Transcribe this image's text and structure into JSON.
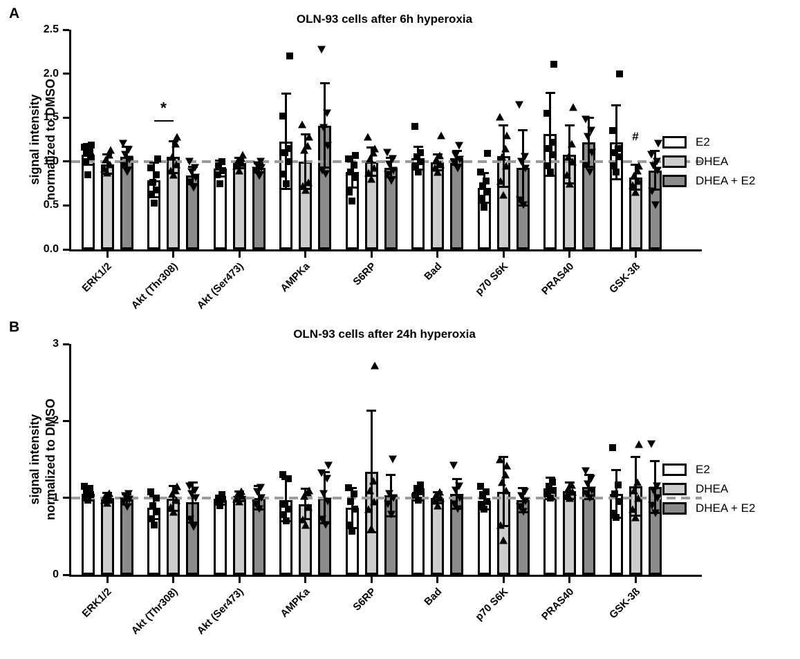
{
  "figure": {
    "background_color": "#ffffff",
    "bar_border_color": "#000000",
    "reference_line_color": "#9b9b9b",
    "series": [
      {
        "name": "E2",
        "marker": "square",
        "fill": "#ffffff"
      },
      {
        "name": "DHEA",
        "marker": "triangle-up",
        "fill": "#cdcdcd"
      },
      {
        "name": "DHEA + E2",
        "marker": "triangle-down",
        "fill": "#8b8b8b"
      }
    ]
  },
  "chart_data": [
    {
      "type": "bar",
      "panel_label": "A",
      "title": "OLN-93 cells after 6h hyperoxia",
      "ylabel_line1": "signal intensity",
      "ylabel_line2": "normalized to DMSO",
      "ylim": [
        0,
        2.5
      ],
      "ytick_labels": [
        "2.5",
        "2.0",
        "1.5",
        "1.0",
        "0.5",
        "0.0"
      ],
      "reference_line": 1.0,
      "grid": false,
      "legend_position": "right",
      "categories": [
        "ERK1/2",
        "Akt (Thr308)",
        "Akt (Ser473)",
        "AMPKa",
        "S6RP",
        "Bad",
        "p70 S6K",
        "PRAS40",
        "GSK-3ß"
      ],
      "series": [
        {
          "name": "E2",
          "means": [
            1.08,
            0.79,
            0.92,
            1.23,
            0.88,
            1.04,
            0.7,
            1.31,
            1.22
          ],
          "sds": [
            0.12,
            0.2,
            0.09,
            0.54,
            0.18,
            0.13,
            0.17,
            0.47,
            0.42
          ],
          "points": [
            [
              0.85,
              1.0,
              1.05,
              1.1,
              1.13,
              1.16,
              1.19
            ],
            [
              0.53,
              0.63,
              0.68,
              0.76,
              0.85,
              0.93,
              1.03
            ],
            [
              0.75,
              0.85,
              0.9,
              0.95,
              1.0
            ],
            [
              0.75,
              0.86,
              1.0,
              1.1,
              1.15,
              1.52,
              2.2
            ],
            [
              0.55,
              0.65,
              0.82,
              0.88,
              0.96,
              1.03,
              1.07
            ],
            [
              0.88,
              0.95,
              1.0,
              1.05,
              1.1,
              1.4
            ],
            [
              0.48,
              0.58,
              0.65,
              0.72,
              0.78,
              0.88,
              1.09
            ],
            [
              0.88,
              0.95,
              1.08,
              1.15,
              1.22,
              1.55,
              2.11
            ],
            [
              0.88,
              0.95,
              1.05,
              1.1,
              1.15,
              1.35,
              2.0
            ]
          ]
        },
        {
          "name": "DHEA",
          "means": [
            0.97,
            1.05,
            0.98,
            1.0,
            1.0,
            0.99,
            1.06,
            1.08,
            0.82
          ],
          "sds": [
            0.11,
            0.18,
            0.06,
            0.31,
            0.16,
            0.09,
            0.35,
            0.33,
            0.14
          ],
          "points": [
            [
              0.87,
              0.92,
              0.97,
              1.02,
              1.08,
              1.13
            ],
            [
              0.85,
              0.9,
              0.97,
              1.05,
              1.2,
              1.28
            ],
            [
              0.9,
              0.95,
              0.98,
              1.01,
              1.04,
              1.08
            ],
            [
              0.68,
              0.72,
              0.76,
              1.13,
              1.18,
              1.28,
              1.42
            ],
            [
              0.8,
              0.87,
              0.93,
              1.03,
              1.1,
              1.15,
              1.28
            ],
            [
              0.88,
              0.93,
              0.97,
              1.02,
              1.07,
              1.3
            ],
            [
              0.62,
              0.78,
              0.95,
              1.05,
              1.15,
              1.3,
              1.51
            ],
            [
              0.75,
              0.85,
              1.0,
              1.05,
              1.2,
              1.62
            ],
            [
              0.65,
              0.73,
              0.78,
              0.84,
              0.9,
              0.95
            ]
          ]
        },
        {
          "name": "DHEA + E2",
          "means": [
            1.05,
            0.84,
            0.93,
            1.41,
            0.93,
            1.04,
            0.93,
            1.22,
            0.9
          ],
          "sds": [
            0.12,
            0.1,
            0.05,
            0.48,
            0.11,
            0.08,
            0.43,
            0.28,
            0.22
          ],
          "points": [
            [
              0.88,
              0.95,
              1.02,
              1.08,
              1.13,
              1.2
            ],
            [
              0.7,
              0.76,
              0.82,
              0.88,
              0.93,
              1.0
            ],
            [
              0.83,
              0.9,
              0.93,
              0.96,
              1.0
            ],
            [
              0.86,
              0.9,
              1.18,
              1.38,
              1.55,
              2.27
            ],
            [
              0.78,
              0.85,
              0.9,
              0.97,
              1.03,
              1.1
            ],
            [
              0.92,
              0.98,
              1.02,
              1.07,
              1.18
            ],
            [
              0.5,
              0.56,
              0.92,
              1.0,
              1.05,
              1.64
            ],
            [
              0.88,
              0.95,
              1.1,
              1.28,
              1.35,
              1.48
            ],
            [
              0.5,
              0.66,
              0.9,
              0.95,
              1.0,
              1.08,
              1.2
            ]
          ]
        }
      ],
      "annotations": [
        {
          "type": "line-star",
          "text": "*",
          "category": 1,
          "from_series": 0,
          "to_series": 1,
          "y": 1.47
        },
        {
          "type": "text",
          "text": "#",
          "category": 8,
          "series": 1,
          "y": 1.2
        }
      ]
    },
    {
      "type": "bar",
      "panel_label": "B",
      "title": "OLN-93 cells after 24h hyperoxia",
      "ylabel_line1": "signal intensity",
      "ylabel_line2": "normalized to DMSO",
      "ylim": [
        0,
        3
      ],
      "ytick_labels": [
        "3",
        "2",
        "1",
        "0"
      ],
      "reference_line": 1.0,
      "grid": false,
      "legend_position": "right",
      "categories": [
        "ERK1/2",
        "Akt (Thr308)",
        "Akt (Ser473)",
        "AMPKa",
        "S6RP",
        "Bad",
        "p70 S6K",
        "PRAS40",
        "GSK-3ß"
      ],
      "series": [
        {
          "name": "E2",
          "means": [
            1.05,
            0.87,
            0.97,
            0.97,
            0.87,
            1.06,
            0.96,
            1.12,
            1.05
          ],
          "sds": [
            0.08,
            0.15,
            0.06,
            0.27,
            0.26,
            0.09,
            0.11,
            0.14,
            0.31
          ],
          "points": [
            [
              0.97,
              1.0,
              1.04,
              1.08,
              1.12,
              1.15
            ],
            [
              0.65,
              0.73,
              0.82,
              0.9,
              1.0,
              1.08
            ],
            [
              0.9,
              0.94,
              0.98,
              1.0,
              1.04
            ],
            [
              0.7,
              0.78,
              0.85,
              0.92,
              1.25,
              1.3
            ],
            [
              0.57,
              0.65,
              0.85,
              0.95,
              1.05,
              1.13
            ],
            [
              0.97,
              1.03,
              1.08,
              1.12,
              1.17
            ],
            [
              0.85,
              0.9,
              0.95,
              1.02,
              1.08,
              1.15
            ],
            [
              1.0,
              1.05,
              1.1,
              1.15,
              1.2
            ],
            [
              0.75,
              0.8,
              0.95,
              1.05,
              1.17,
              1.65
            ]
          ]
        },
        {
          "name": "DHEA",
          "means": [
            1.0,
            0.99,
            1.02,
            0.92,
            1.34,
            1.0,
            1.08,
            1.09,
            1.15
          ],
          "sds": [
            0.06,
            0.16,
            0.06,
            0.2,
            0.79,
            0.07,
            0.45,
            0.11,
            0.38
          ],
          "points": [
            [
              0.93,
              0.97,
              1.0,
              1.03,
              1.06
            ],
            [
              0.82,
              0.88,
              0.97,
              1.05,
              1.1,
              1.15
            ],
            [
              0.95,
              0.99,
              1.02,
              1.05,
              1.09
            ],
            [
              0.65,
              0.72,
              0.88,
              1.02,
              1.07,
              1.1
            ],
            [
              0.6,
              0.85,
              0.95,
              1.1,
              1.22,
              2.72
            ],
            [
              0.9,
              0.96,
              1.0,
              1.04,
              1.08
            ],
            [
              0.45,
              0.65,
              1.1,
              1.2,
              1.3,
              1.42,
              1.5
            ],
            [
              1.0,
              1.04,
              1.08,
              1.12,
              1.17
            ],
            [
              0.75,
              0.85,
              1.0,
              1.1,
              1.2,
              1.7
            ]
          ]
        },
        {
          "name": "DHEA + E2",
          "means": [
            0.98,
            0.94,
            1.0,
            1.0,
            1.03,
            1.05,
            0.97,
            1.14,
            1.14
          ],
          "sds": [
            0.07,
            0.26,
            0.15,
            0.33,
            0.27,
            0.19,
            0.16,
            0.16,
            0.34
          ],
          "points": [
            [
              0.88,
              0.95,
              0.98,
              1.02,
              1.05
            ],
            [
              0.62,
              0.72,
              1.0,
              1.05,
              1.1,
              1.15
            ],
            [
              0.85,
              0.92,
              1.0,
              1.08,
              1.13
            ],
            [
              0.65,
              0.72,
              0.95,
              1.05,
              1.25,
              1.32,
              1.42
            ],
            [
              0.78,
              0.92,
              1.0,
              1.05,
              1.5
            ],
            [
              0.85,
              0.92,
              1.0,
              1.1,
              1.15,
              1.42
            ],
            [
              0.82,
              0.88,
              0.95,
              1.02,
              1.08
            ],
            [
              1.0,
              1.05,
              1.1,
              1.18,
              1.25,
              1.35
            ],
            [
              0.8,
              0.9,
              1.0,
              1.1,
              1.15,
              1.7
            ]
          ]
        }
      ],
      "annotations": []
    }
  ],
  "legend": {
    "items": [
      "E2",
      "DHEA",
      "DHEA + E2"
    ]
  }
}
